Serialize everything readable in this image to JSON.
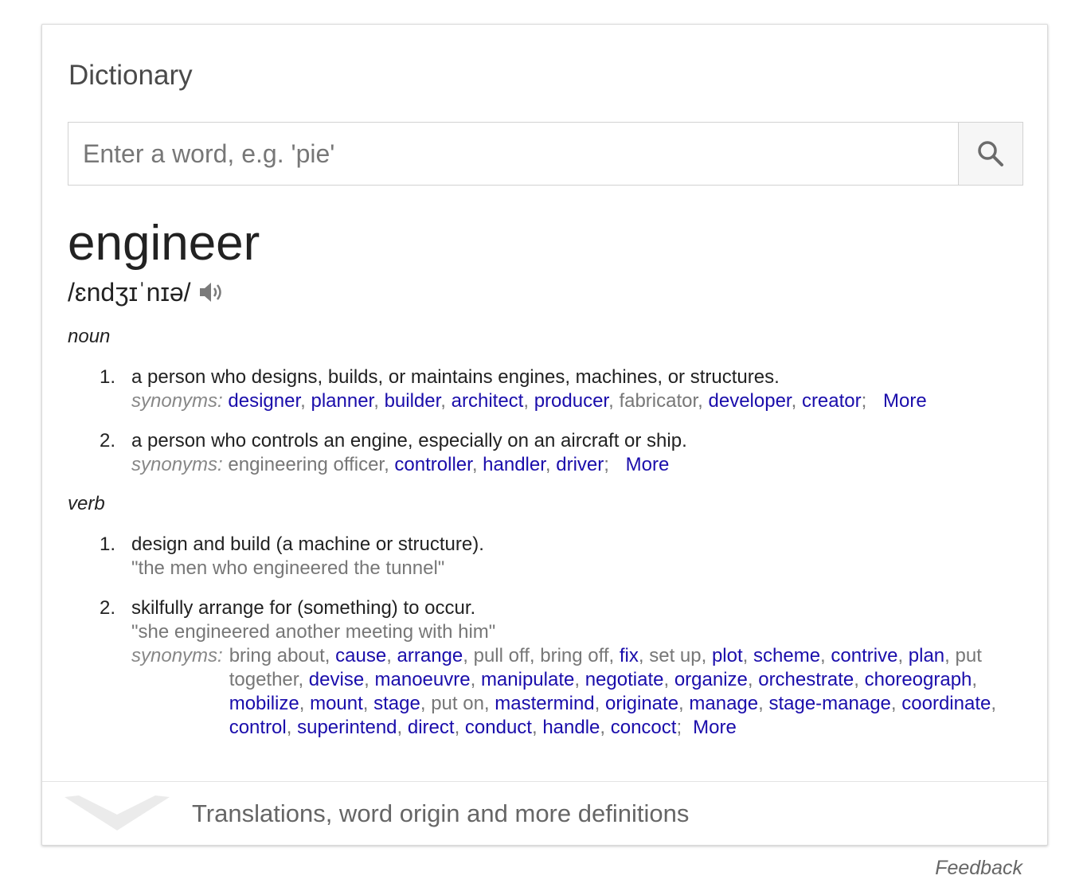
{
  "card": {
    "title": "Dictionary",
    "search": {
      "placeholder": "Enter a word, e.g. 'pie'",
      "value": ""
    },
    "search_icon": "magnifier-icon"
  },
  "entry": {
    "headword": "engineer",
    "pronunciation": "/ɛndʒɪˈnɪə/",
    "speaker_icon": "speaker-icon",
    "noun": {
      "label": "noun",
      "senses": [
        {
          "num": "1.",
          "definition": "a person who designs, builds, or maintains engines, machines, or structures.",
          "synonyms_label": "synonyms:",
          "synonyms": [
            {
              "text": "designer",
              "link": true
            },
            {
              "text": "planner",
              "link": true
            },
            {
              "text": "builder",
              "link": true
            },
            {
              "text": "architect",
              "link": true
            },
            {
              "text": "producer",
              "link": true
            },
            {
              "text": "fabricator",
              "link": false
            },
            {
              "text": "developer",
              "link": true
            },
            {
              "text": "creator",
              "link": true
            }
          ],
          "more": "More"
        },
        {
          "num": "2.",
          "definition": "a person who controls an engine, especially on an aircraft or ship.",
          "synonyms_label": "synonyms:",
          "synonyms": [
            {
              "text": "engineering officer",
              "link": false
            },
            {
              "text": "controller",
              "link": true
            },
            {
              "text": "handler",
              "link": true
            },
            {
              "text": "driver",
              "link": true
            }
          ],
          "more": "More"
        }
      ]
    },
    "verb": {
      "label": "verb",
      "senses": [
        {
          "num": "1.",
          "definition": "design and build (a machine or structure).",
          "example": "\"the men who engineered the tunnel\""
        },
        {
          "num": "2.",
          "definition": "skilfully arrange for (something) to occur.",
          "example": "\"she engineered another meeting with him\"",
          "synonyms_label": "synonyms:",
          "synonyms": [
            {
              "text": "bring about",
              "link": false
            },
            {
              "text": "cause",
              "link": true
            },
            {
              "text": "arrange",
              "link": true
            },
            {
              "text": "pull off",
              "link": false
            },
            {
              "text": "bring off",
              "link": false
            },
            {
              "text": "fix",
              "link": true
            },
            {
              "text": "set up",
              "link": false
            },
            {
              "text": "plot",
              "link": true
            },
            {
              "text": "scheme",
              "link": true
            },
            {
              "text": "contrive",
              "link": true
            },
            {
              "text": "plan",
              "link": true
            },
            {
              "text": "put together",
              "link": false
            },
            {
              "text": "devise",
              "link": true
            },
            {
              "text": "manoeuvre",
              "link": true
            },
            {
              "text": "manipulate",
              "link": true
            },
            {
              "text": "negotiate",
              "link": true
            },
            {
              "text": "organize",
              "link": true
            },
            {
              "text": "orchestrate",
              "link": true
            },
            {
              "text": "choreograph",
              "link": true
            },
            {
              "text": "mobilize",
              "link": true
            },
            {
              "text": "mount",
              "link": true
            },
            {
              "text": "stage",
              "link": true
            },
            {
              "text": "put on",
              "link": false
            },
            {
              "text": "mastermind",
              "link": true
            },
            {
              "text": "originate",
              "link": true
            },
            {
              "text": "manage",
              "link": true
            },
            {
              "text": "stage-manage",
              "link": true
            },
            {
              "text": "coordinate",
              "link": true
            },
            {
              "text": "control",
              "link": true
            },
            {
              "text": "superintend",
              "link": true
            },
            {
              "text": "direct",
              "link": true
            },
            {
              "text": "conduct",
              "link": true
            },
            {
              "text": "handle",
              "link": true
            },
            {
              "text": "concoct",
              "link": true
            }
          ],
          "more": "More"
        }
      ]
    }
  },
  "footer": {
    "expand_icon": "chevron-down-icon",
    "text": "Translations, word origin and more definitions"
  },
  "feedback": "Feedback",
  "colors": {
    "link": "#1a0dab",
    "muted": "#777777",
    "text": "#222222"
  }
}
